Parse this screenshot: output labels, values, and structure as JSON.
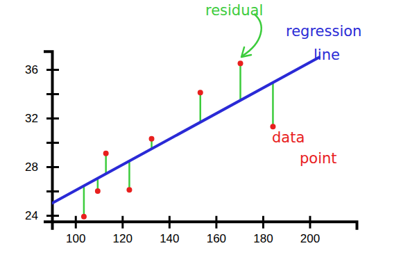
{
  "chart_data": {
    "type": "scatter",
    "x": [
      103.6,
      109.5,
      113,
      123,
      132.5,
      153.3,
      170.4,
      184.3
    ],
    "values": [
      23.9,
      26.0,
      29.1,
      26.1,
      30.3,
      34.1,
      36.5,
      31.3
    ],
    "color": "#e8201e",
    "marker": "circle",
    "xlim": [
      90,
      220
    ],
    "ylim": [
      23.5,
      37.5
    ],
    "xticks": [
      100,
      120,
      140,
      160,
      180,
      200
    ],
    "yticks": [
      24,
      {
        "value": 26,
        "label": null
      },
      28,
      {
        "value": 30,
        "label": null
      },
      32,
      {
        "value": 34,
        "label": null
      },
      36
    ],
    "regression": {
      "x": [
        90,
        204
      ],
      "y": [
        25,
        37
      ]
    },
    "annotations": [
      "residual",
      "regression line",
      "data point"
    ]
  }
}
